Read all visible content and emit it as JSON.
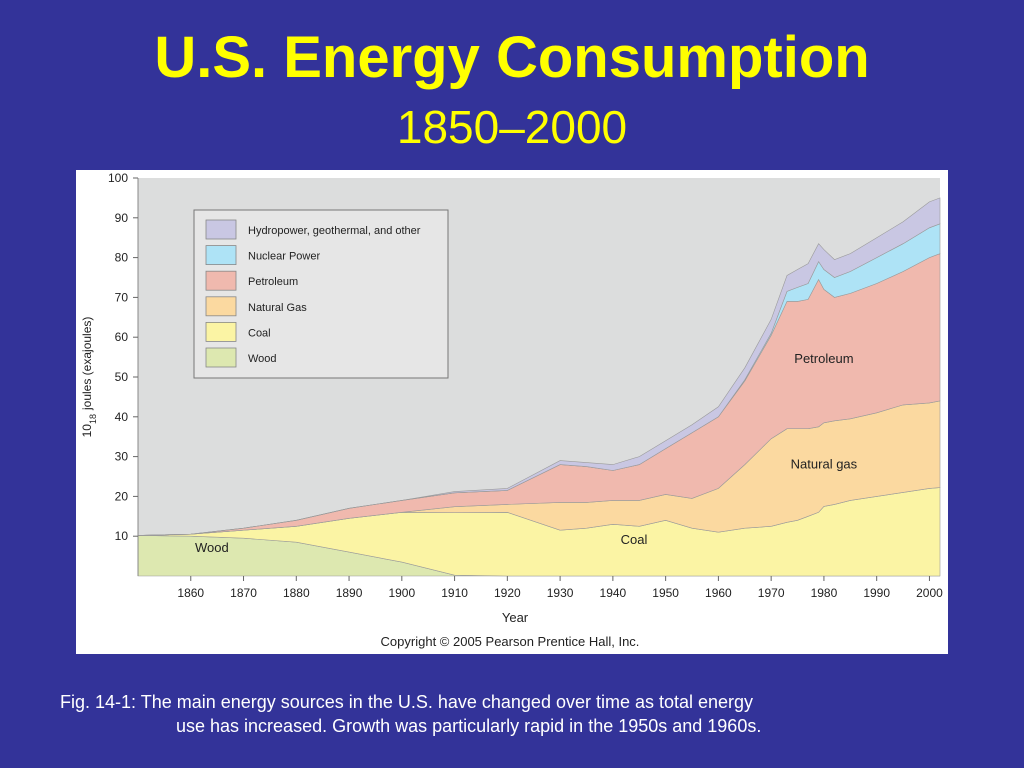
{
  "slide": {
    "title": "U.S. Energy Consumption",
    "subtitle": "1850–2000",
    "caption_line1": "Fig. 14-1: The main energy sources in the U.S. have changed over time as total energy",
    "caption_line2": "use has increased. Growth was particularly rapid in the 1950s and 1960s.",
    "copyright": "Copyright © 2005 Pearson Prentice Hall, Inc."
  },
  "colors": {
    "background": "#333399",
    "title": "#ffff00",
    "plot_bg": "#dcdddd",
    "wood": "#dde8b0",
    "coal": "#fbf4a4",
    "natural_gas": "#fbd9a0",
    "petroleum": "#f0b9ae",
    "nuclear": "#aee3f6",
    "hydro": "#c9c7e3"
  },
  "chart_data": {
    "type": "area",
    "stacked": true,
    "xlabel": "Year",
    "ylabel": "10 18 joules (exajoules)",
    "ylabel_parts": {
      "base": "10",
      "exponent": "18",
      "rest": "joules (exajoules)"
    },
    "xlim": [
      1850,
      2002
    ],
    "ylim": [
      0,
      100
    ],
    "xticks": [
      1860,
      1870,
      1880,
      1890,
      1900,
      1910,
      1920,
      1930,
      1940,
      1950,
      1960,
      1970,
      1980,
      1990,
      2000
    ],
    "yticks": [
      10,
      20,
      30,
      40,
      50,
      60,
      70,
      80,
      90,
      100
    ],
    "grid": false,
    "legend_position": "top-left",
    "x": [
      1850,
      1860,
      1870,
      1880,
      1890,
      1900,
      1910,
      1920,
      1930,
      1935,
      1940,
      1945,
      1950,
      1955,
      1960,
      1965,
      1970,
      1973,
      1975,
      1977,
      1979,
      1980,
      1982,
      1985,
      1990,
      1995,
      2000,
      2002
    ],
    "series": [
      {
        "name": "Wood",
        "key": "wood",
        "values": [
          10.2,
          10.0,
          9.5,
          8.5,
          6.0,
          3.5,
          0.2,
          0.0,
          0.0,
          0.0,
          0.0,
          0.0,
          0.0,
          0.0,
          0.0,
          0.0,
          0.0,
          0.0,
          0.0,
          0.0,
          0.0,
          0.0,
          0.0,
          0.0,
          0.0,
          0.0,
          0.0,
          0.0
        ]
      },
      {
        "name": "Coal",
        "key": "coal",
        "values": [
          0.0,
          0.5,
          2.0,
          4.0,
          8.5,
          12.5,
          15.7,
          16.0,
          11.5,
          12.0,
          13.0,
          12.5,
          14.0,
          12.0,
          11.0,
          12.0,
          12.5,
          13.5,
          14.0,
          15.0,
          16.0,
          17.5,
          18.0,
          19.0,
          20.0,
          21.0,
          22.0,
          22.2
        ]
      },
      {
        "name": "Natural Gas",
        "key": "natural_gas",
        "values": [
          0.0,
          0.0,
          0.0,
          0.0,
          0.0,
          0.0,
          1.5,
          2.0,
          7.0,
          6.5,
          6.0,
          6.5,
          6.5,
          7.5,
          11.0,
          16.0,
          22.0,
          23.5,
          23.0,
          22.0,
          21.5,
          21.0,
          21.0,
          20.5,
          21.0,
          22.0,
          21.5,
          21.8
        ]
      },
      {
        "name": "Petroleum",
        "key": "petroleum",
        "values": [
          0.0,
          0.0,
          0.5,
          1.5,
          2.5,
          3.0,
          3.5,
          3.5,
          9.5,
          9.0,
          7.5,
          9.0,
          11.5,
          16.5,
          18.0,
          21.0,
          26.0,
          32.0,
          32.0,
          32.5,
          37.0,
          33.5,
          31.0,
          31.5,
          32.5,
          33.5,
          36.5,
          37.0
        ]
      },
      {
        "name": "Nuclear Power",
        "key": "nuclear",
        "values": [
          0.0,
          0.0,
          0.0,
          0.0,
          0.0,
          0.0,
          0.0,
          0.0,
          0.0,
          0.0,
          0.0,
          0.0,
          0.0,
          0.0,
          0.0,
          0.3,
          0.5,
          2.5,
          3.5,
          4.0,
          4.5,
          5.0,
          5.0,
          5.5,
          6.5,
          7.0,
          7.5,
          7.5
        ]
      },
      {
        "name": "Hydropower, geothermal, and other",
        "key": "hydro",
        "values": [
          0.0,
          0.0,
          0.0,
          0.0,
          0.0,
          0.0,
          0.3,
          0.5,
          1.0,
          1.0,
          1.5,
          2.0,
          2.0,
          2.0,
          2.5,
          3.0,
          3.5,
          4.0,
          4.5,
          5.0,
          4.5,
          5.0,
          4.5,
          4.5,
          5.0,
          5.5,
          6.5,
          6.5
        ]
      }
    ],
    "legend": [
      "Hydropower, geothermal, and other",
      "Nuclear Power",
      "Petroleum",
      "Natural Gas",
      "Coal",
      "Wood"
    ],
    "annotations": [
      {
        "text": "Wood",
        "x": 1864,
        "y": 6
      },
      {
        "text": "Coal",
        "x": 1944,
        "y": 8
      },
      {
        "text": "Natural gas",
        "x": 1980,
        "y": 27
      },
      {
        "text": "Petroleum",
        "x": 1980,
        "y": 53.5
      }
    ]
  }
}
